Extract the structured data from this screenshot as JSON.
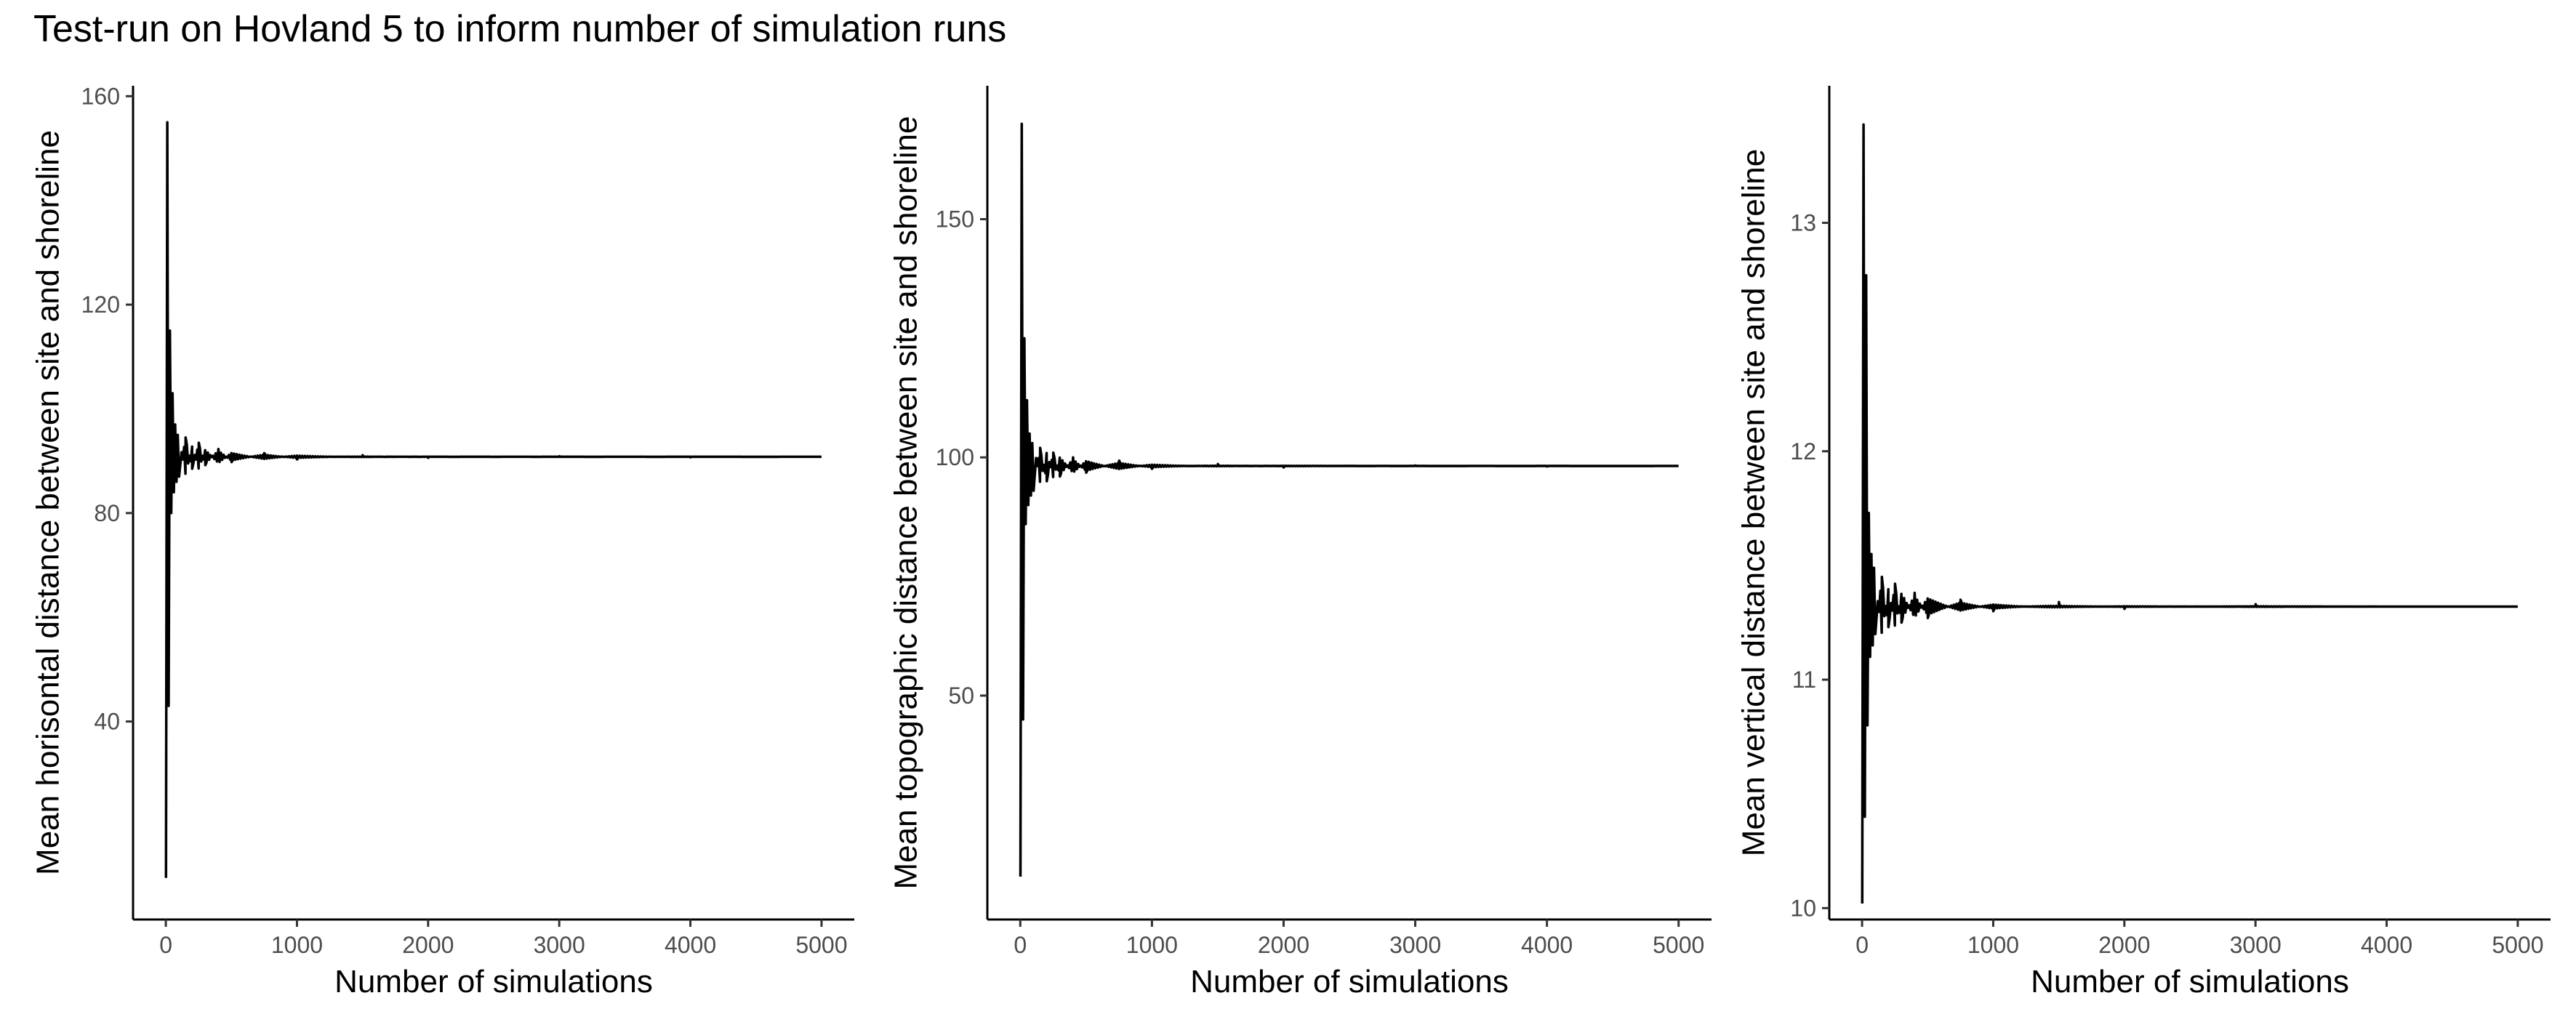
{
  "title": "Test-run on Hovland 5 to inform number of simulation runs",
  "chart_data": [
    {
      "type": "line",
      "xlabel": "Number of simulations",
      "ylabel": "Mean horisontal distance between site and shoreline",
      "xlim": [
        -250,
        5250
      ],
      "ylim": [
        2,
        162
      ],
      "x_ticks": [
        0,
        1000,
        2000,
        3000,
        4000,
        5000
      ],
      "y_ticks": [
        40,
        80,
        120,
        160
      ],
      "x_tick_labels": [
        "0",
        "1000",
        "2000",
        "3000",
        "4000",
        "5000"
      ],
      "y_tick_labels": [
        "40",
        "80",
        "120",
        "160"
      ],
      "grid": false,
      "legend": "none",
      "color": "#000000",
      "n_max": 5000,
      "converged_value": 90.8,
      "series": [
        {
          "x": [
            1,
            11,
            21,
            31,
            41,
            51,
            61,
            71,
            81,
            91,
            101,
            151,
            201,
            251,
            301,
            401,
            501,
            751,
            1001,
            1501,
            2001,
            3001,
            4001,
            5000
          ],
          "y": [
            10,
            155,
            43,
            115,
            80,
            103,
            84,
            97,
            86,
            95,
            87,
            94.5,
            88.5,
            93.5,
            89.2,
            92.3,
            89.8,
            91.5,
            90.3,
            91.1,
            90.6,
            90.9,
            90.7,
            90.8
          ]
        }
      ]
    },
    {
      "type": "line",
      "xlabel": "Number of simulations",
      "ylabel": "Mean topographic distance between site and shoreline",
      "xlim": [
        -250,
        5250
      ],
      "ylim": [
        3,
        178
      ],
      "x_ticks": [
        0,
        1000,
        2000,
        3000,
        4000,
        5000
      ],
      "y_ticks": [
        50,
        100,
        150
      ],
      "x_tick_labels": [
        "0",
        "1000",
        "2000",
        "3000",
        "4000",
        "5000"
      ],
      "y_tick_labels": [
        "50",
        "100",
        "150"
      ],
      "grid": false,
      "legend": "none",
      "color": "#000000",
      "n_max": 5000,
      "converged_value": 98.2,
      "series": [
        {
          "x": [
            1,
            11,
            21,
            31,
            41,
            51,
            61,
            71,
            81,
            91,
            101,
            151,
            201,
            251,
            301,
            401,
            501,
            751,
            1001,
            1501,
            2001,
            3001,
            4001,
            5000
          ],
          "y": [
            12,
            170,
            45,
            125,
            86,
            112,
            90,
            105,
            92,
            103,
            93,
            102,
            95,
            101,
            96,
            100,
            96.8,
            99.3,
            97.6,
            98.6,
            97.9,
            98.3,
            98.1,
            98.2
          ]
        }
      ]
    },
    {
      "type": "line",
      "xlabel": "Number of simulations",
      "ylabel": "Mean vertical distance between site and shoreline",
      "xlim": [
        -250,
        5250
      ],
      "ylim": [
        9.95,
        13.6
      ],
      "x_ticks": [
        0,
        1000,
        2000,
        3000,
        4000,
        5000
      ],
      "y_ticks": [
        10,
        11,
        12,
        13
      ],
      "x_tick_labels": [
        "0",
        "1000",
        "2000",
        "3000",
        "4000",
        "5000"
      ],
      "y_tick_labels": [
        "10",
        "11",
        "12",
        "13"
      ],
      "grid": false,
      "legend": "none",
      "color": "#000000",
      "n_max": 5000,
      "converged_value": 11.32,
      "series": [
        {
          "x": [
            1,
            11,
            21,
            31,
            41,
            51,
            61,
            71,
            81,
            91,
            101,
            151,
            201,
            251,
            301,
            401,
            501,
            751,
            1001,
            1501,
            2001,
            3001,
            4001,
            5000
          ],
          "y": [
            10.02,
            13.43,
            10.4,
            12.77,
            10.8,
            11.73,
            11.1,
            11.55,
            11.15,
            11.49,
            11.2,
            11.45,
            11.23,
            11.42,
            11.25,
            11.38,
            11.27,
            11.35,
            11.3,
            11.34,
            11.31,
            11.33,
            11.32,
            11.32
          ]
        }
      ]
    }
  ]
}
